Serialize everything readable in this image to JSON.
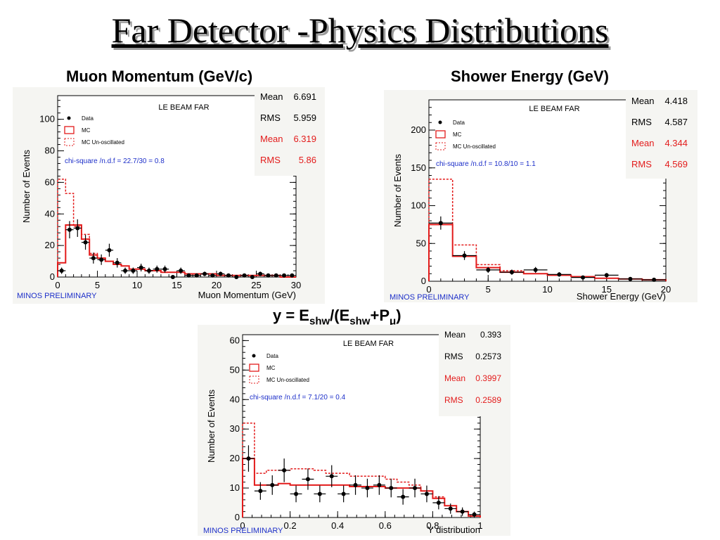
{
  "slide": {
    "title": "Far Detector -Physics Distributions"
  },
  "headings": {
    "muon": "Muon Momentum (GeV/c)",
    "shower": "Shower Energy (GeV)",
    "y_lhs": "y = E",
    "y_shw1": "shw",
    "y_mid": "/(E",
    "y_shw2": "shw",
    "y_plus": "+P",
    "y_mu": "μ",
    "y_close": ")"
  },
  "chart_data": [
    {
      "type": "histogram",
      "title": "LE BEAM FAR",
      "xlabel": "Muon Momentum (GeV)",
      "ylabel": "Number of Events",
      "footer": "MINOS PRELIMINARY",
      "xlim": [
        0,
        30
      ],
      "ylim": [
        0,
        115
      ],
      "xticks": [
        0,
        5,
        10,
        15,
        20,
        25,
        30
      ],
      "yticks": [
        0,
        20,
        40,
        60,
        80,
        100
      ],
      "legend": {
        "data": "Data",
        "mc": "MC",
        "unosc": "MC Un-oscillated"
      },
      "chi_square": "chi-square /n.d.f =  22.7/30 =   0.8",
      "stats": {
        "data": [
          {
            "label": "Mean",
            "value": "6.691"
          },
          {
            "label": "RMS",
            "value": "5.959"
          }
        ],
        "mc": [
          {
            "label": "Mean",
            "value": "6.319"
          },
          {
            "label": "RMS",
            "value": "5.86"
          }
        ]
      },
      "bin_edges": [
        0,
        1,
        2,
        3,
        4,
        5,
        6,
        7,
        8,
        9,
        10,
        11,
        12,
        13,
        14,
        15,
        16,
        17,
        18,
        19,
        20,
        21,
        22,
        23,
        24,
        25,
        26,
        27,
        28,
        29,
        30
      ],
      "series": [
        {
          "name": "Data",
          "kind": "points",
          "x": [
            0.5,
            1.5,
            2.5,
            3.5,
            4.5,
            5.5,
            6.5,
            7.5,
            8.5,
            9.5,
            10.5,
            11.5,
            12.5,
            13.5,
            14.5,
            15.5,
            16.5,
            17.5,
            18.5,
            19.5,
            20.5,
            21.5,
            22.5,
            23.5,
            24.5,
            25.5,
            26.5,
            27.5,
            28.5,
            29.5
          ],
          "values": [
            4,
            30,
            31,
            22,
            12,
            11,
            17,
            9,
            4,
            4,
            6,
            4,
            5,
            5,
            0,
            4,
            1,
            1,
            2,
            1,
            2,
            1,
            0,
            1,
            0,
            2,
            1,
            1,
            1,
            1
          ]
        },
        {
          "name": "MC",
          "kind": "step",
          "values": [
            9,
            33,
            33,
            24,
            14,
            12,
            10,
            8,
            7,
            5,
            5,
            4,
            4,
            3,
            3,
            3,
            2,
            2,
            2,
            2,
            1,
            1,
            1,
            1,
            1,
            1,
            1,
            1,
            0,
            0
          ]
        },
        {
          "name": "MC Un-oscillated",
          "kind": "step",
          "values": [
            62,
            53,
            32,
            27,
            15,
            12,
            10,
            8,
            7,
            5,
            5,
            4,
            4,
            3,
            3,
            3,
            2,
            2,
            2,
            2,
            1,
            1,
            1,
            1,
            1,
            1,
            1,
            1,
            0,
            0
          ]
        }
      ]
    },
    {
      "type": "histogram",
      "title": "LE BEAM FAR",
      "xlabel": "Shower Energy (GeV)",
      "ylabel": "Number of Events",
      "footer": "MINOS PRELIMINARY",
      "xlim": [
        0,
        20
      ],
      "ylim": [
        0,
        240
      ],
      "xticks": [
        0,
        5,
        10,
        15,
        20
      ],
      "yticks": [
        0,
        50,
        100,
        150,
        200
      ],
      "legend": {
        "data": "Data",
        "mc": "MC",
        "unosc": "MC Un-oscillated"
      },
      "chi_square": "chi-square /n.d.f =  10.8/10 =   1.1",
      "stats": {
        "data": [
          {
            "label": "Mean",
            "value": "4.418"
          },
          {
            "label": "RMS",
            "value": "4.587"
          }
        ],
        "mc": [
          {
            "label": "Mean",
            "value": "4.344"
          },
          {
            "label": "RMS",
            "value": "4.569"
          }
        ]
      },
      "bin_edges": [
        0,
        2,
        4,
        6,
        8,
        10,
        12,
        14,
        16,
        18,
        20
      ],
      "series": [
        {
          "name": "Data",
          "kind": "points",
          "x": [
            1,
            3,
            5,
            7,
            9,
            11,
            13,
            15,
            17,
            19
          ],
          "values": [
            77,
            34,
            15,
            12,
            15,
            9,
            5,
            8,
            3,
            2
          ]
        },
        {
          "name": "MC",
          "kind": "step",
          "values": [
            75,
            33,
            18,
            12,
            10,
            8,
            6,
            4,
            3,
            2
          ]
        },
        {
          "name": "MC Un-oscillated",
          "kind": "step",
          "values": [
            135,
            48,
            22,
            14,
            10,
            8,
            6,
            4,
            3,
            2
          ]
        }
      ]
    },
    {
      "type": "histogram",
      "title": "LE BEAM FAR",
      "xlabel": "Y distribution",
      "ylabel": "Number of Events",
      "footer": "MINOS PRELIMINARY",
      "xlim": [
        0,
        1
      ],
      "ylim": [
        0,
        62
      ],
      "xticks": [
        0,
        0.2,
        0.4,
        0.6,
        0.8,
        1
      ],
      "yticks": [
        0,
        10,
        20,
        30,
        40,
        50,
        60
      ],
      "legend": {
        "data": "Data",
        "mc": "MC",
        "unosc": "MC Un-oscillated"
      },
      "chi_square": "chi-square /n.d.f =   7.1/20 =   0.4",
      "stats": {
        "data": [
          {
            "label": "Mean",
            "value": "0.393"
          },
          {
            "label": "RMS",
            "value": "0.2573"
          }
        ],
        "mc": [
          {
            "label": "Mean",
            "value": "0.3997"
          },
          {
            "label": "RMS",
            "value": "0.2589"
          }
        ]
      },
      "bin_edges": [
        0,
        0.05,
        0.1,
        0.15,
        0.2,
        0.25,
        0.3,
        0.35,
        0.4,
        0.45,
        0.5,
        0.55,
        0.6,
        0.65,
        0.7,
        0.75,
        0.8,
        0.85,
        0.9,
        0.95,
        1
      ],
      "series": [
        {
          "name": "Data",
          "kind": "points",
          "x": [
            0.025,
            0.075,
            0.125,
            0.175,
            0.225,
            0.275,
            0.325,
            0.375,
            0.425,
            0.475,
            0.525,
            0.575,
            0.625,
            0.675,
            0.725,
            0.775,
            0.825,
            0.875,
            0.925,
            0.975
          ],
          "values": [
            20,
            9,
            11,
            16,
            8,
            13,
            8,
            14,
            8,
            11,
            10,
            11,
            10,
            7,
            10,
            8,
            5,
            3,
            2,
            1
          ]
        },
        {
          "name": "MC",
          "kind": "step",
          "values": [
            20,
            11,
            11,
            11.5,
            11,
            11,
            11,
            11,
            11,
            10.5,
            10.5,
            10.5,
            10,
            10,
            10,
            9,
            6.5,
            4,
            2,
            0.5
          ]
        },
        {
          "name": "MC Un-oscillated",
          "kind": "step",
          "values": [
            32,
            15,
            16,
            16,
            16.5,
            16.5,
            16,
            15,
            15,
            14,
            14,
            14,
            13,
            12,
            11,
            9,
            7,
            4,
            2,
            0.5
          ]
        }
      ]
    }
  ]
}
